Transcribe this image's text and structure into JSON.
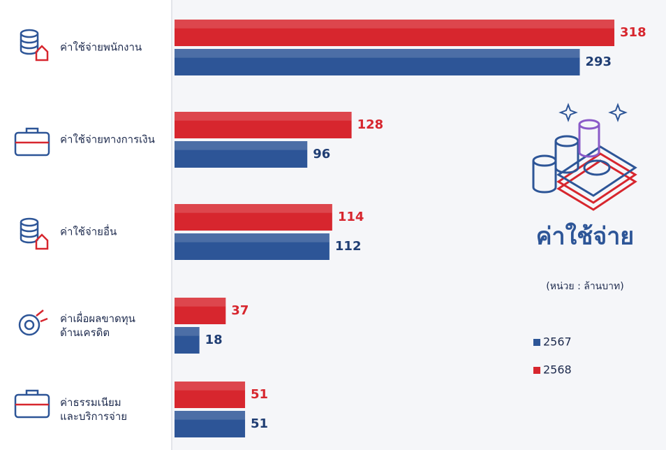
{
  "chart_data": {
    "type": "bar",
    "orientation": "horizontal",
    "title": "ค่าใช้จ่าย",
    "subtitle": "(หน่วย : ล้านบาท)",
    "categories": [
      "ค่าใช้จ่ายพนักงาน",
      "ค่าใช้จ่ายทางการเงิน",
      "ค่าใช้จ่ายอื่น",
      "ค่าเผื่อผลขาดทุน\nด้านเครดิต",
      "ค่าธรรมเนียม\nและบริการจ่าย"
    ],
    "series": [
      {
        "name": "2568",
        "color": "#d7262e",
        "values": [
          318,
          128,
          114,
          37,
          51
        ]
      },
      {
        "name": "2567",
        "color": "#2d5597",
        "values": [
          293,
          96,
          112,
          18,
          51
        ]
      }
    ],
    "xlim": [
      0,
      320
    ]
  }
}
